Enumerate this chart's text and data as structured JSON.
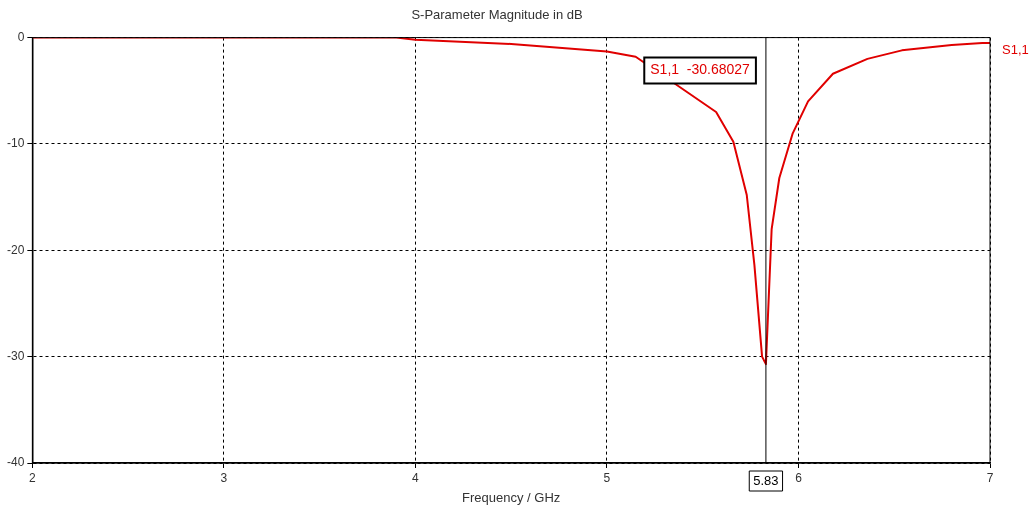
{
  "chart_data": {
    "type": "line",
    "title": "S-Parameter Magnitude in dB",
    "xlabel": "Frequency / GHz",
    "x": [
      2,
      2.5,
      3,
      3.5,
      3.9,
      4,
      4.5,
      5,
      5.15,
      5.57,
      5.66,
      5.73,
      5.77,
      5.81,
      5.83,
      5.86,
      5.9,
      5.97,
      6.05,
      6.18,
      6.36,
      6.54,
      6.8,
      6.96,
      7
    ],
    "series": [
      {
        "name": "S1,1",
        "color": "#e00000",
        "values": [
          0,
          0,
          0,
          0,
          0,
          -0.2,
          -0.6,
          -1.3,
          -1.8,
          -7,
          -9.8,
          -14.8,
          -21.4,
          -30,
          -30.7,
          -18,
          -13.2,
          -9,
          -6,
          -3.4,
          -2,
          -1.2,
          -0.7,
          -0.5,
          -0.5
        ]
      }
    ],
    "xlim": [
      2,
      7
    ],
    "xticks": [
      2,
      3,
      4,
      5,
      6,
      7
    ],
    "ylim": [
      -40,
      0
    ],
    "yticks": [
      -40,
      -30,
      -20,
      -10,
      0
    ],
    "grid": true,
    "legend": false,
    "marker": "none",
    "line_style": "solid",
    "ref_lines": [
      {
        "axis": "x",
        "value": 5.83,
        "label": "5.83",
        "color": "#000000"
      }
    ],
    "annotations": [
      "S1,1  -30.68027"
    ]
  }
}
